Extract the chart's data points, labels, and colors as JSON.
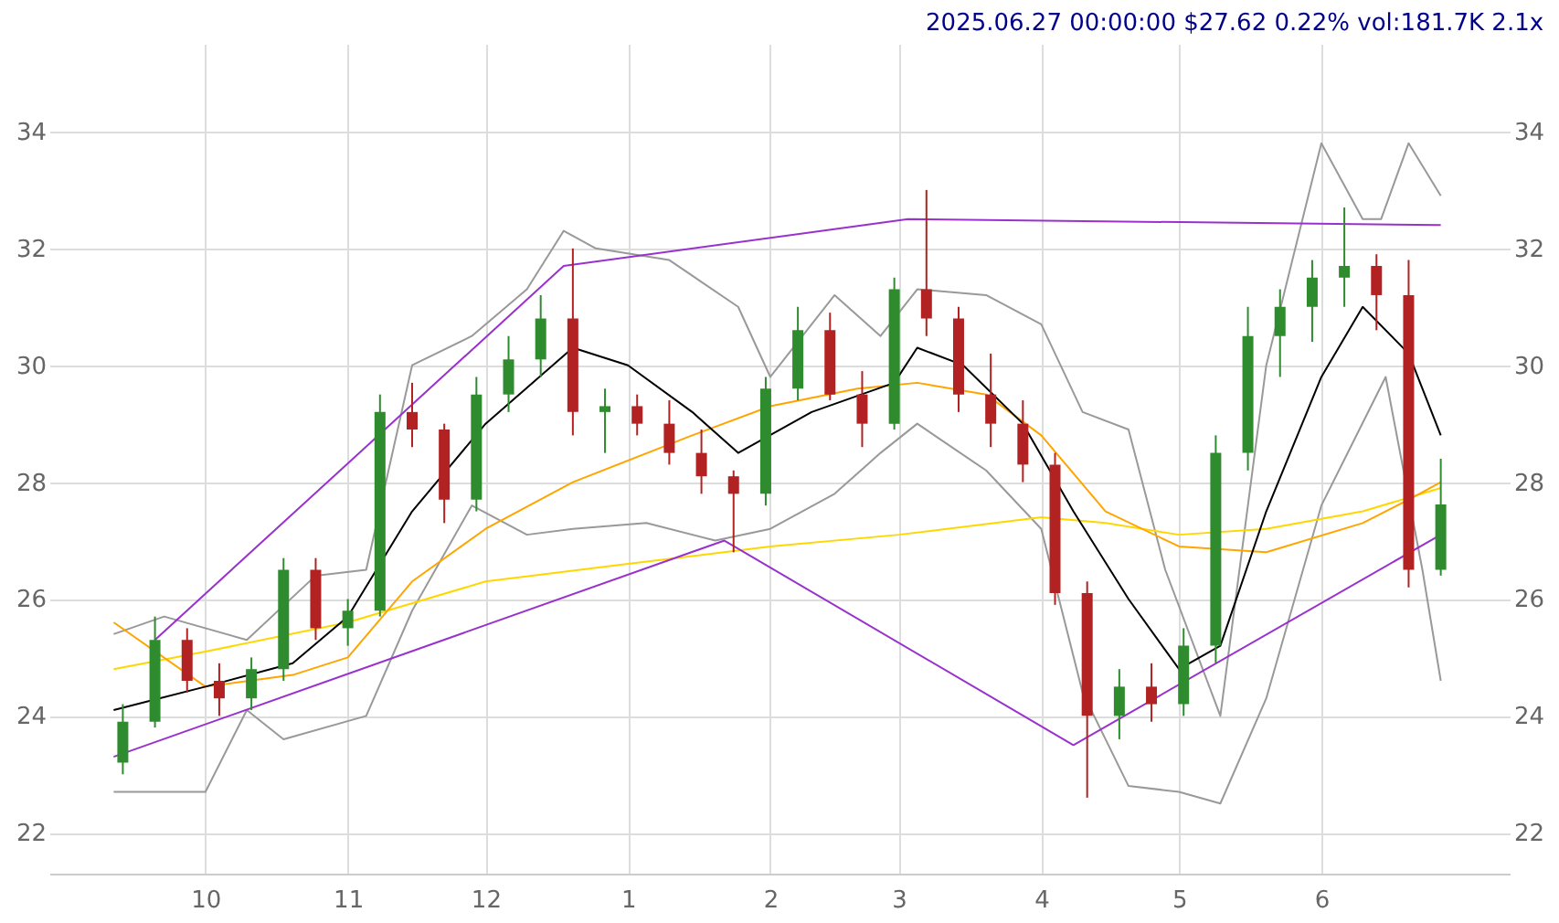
{
  "chart_data": {
    "type": "candlestick",
    "title": "2025.06.27 00:00:00 $27.62 0.22% vol:181.7K 2.1x",
    "x": [
      "2024-09-13",
      "2024-09-20",
      "2024-09-27",
      "2024-10-04",
      "2024-10-11",
      "2024-10-18",
      "2024-10-25",
      "2024-11-01",
      "2024-11-08",
      "2024-11-15",
      "2024-11-22",
      "2024-11-29",
      "2024-12-06",
      "2024-12-13",
      "2024-12-20",
      "2024-12-27",
      "2025-01-03",
      "2025-01-10",
      "2025-01-17",
      "2025-01-24",
      "2025-01-31",
      "2025-02-07",
      "2025-02-14",
      "2025-02-21",
      "2025-02-28",
      "2025-03-07",
      "2025-03-14",
      "2025-03-21",
      "2025-03-28",
      "2025-04-04",
      "2025-04-11",
      "2025-04-18",
      "2025-04-25",
      "2025-05-02",
      "2025-05-09",
      "2025-05-16",
      "2025-05-23",
      "2025-05-30",
      "2025-06-06",
      "2025-06-13",
      "2025-06-20",
      "2025-06-27"
    ],
    "ohlc": [
      [
        23.2,
        24.2,
        23.0,
        23.9
      ],
      [
        23.9,
        25.7,
        23.8,
        25.3
      ],
      [
        25.3,
        25.5,
        24.4,
        24.6
      ],
      [
        24.6,
        24.9,
        24.0,
        24.3
      ],
      [
        24.3,
        25.0,
        24.1,
        24.8
      ],
      [
        24.8,
        26.7,
        24.6,
        26.5
      ],
      [
        26.5,
        26.7,
        25.3,
        25.5
      ],
      [
        25.5,
        26.0,
        25.2,
        25.8
      ],
      [
        25.8,
        29.5,
        25.7,
        29.2
      ],
      [
        29.2,
        29.7,
        28.6,
        28.9
      ],
      [
        28.9,
        29.0,
        27.3,
        27.7
      ],
      [
        27.7,
        29.8,
        27.5,
        29.5
      ],
      [
        29.5,
        30.5,
        29.2,
        30.1
      ],
      [
        30.1,
        31.2,
        29.8,
        30.8
      ],
      [
        30.8,
        32.0,
        28.8,
        29.2
      ],
      [
        29.2,
        29.6,
        28.5,
        29.3
      ],
      [
        29.3,
        29.5,
        28.8,
        29.0
      ],
      [
        29.0,
        29.4,
        28.3,
        28.5
      ],
      [
        28.5,
        28.9,
        27.8,
        28.1
      ],
      [
        28.1,
        28.2,
        26.8,
        27.8
      ],
      [
        27.8,
        29.8,
        27.6,
        29.6
      ],
      [
        29.6,
        31.0,
        29.4,
        30.6
      ],
      [
        30.6,
        30.9,
        29.4,
        29.5
      ],
      [
        29.5,
        29.9,
        28.6,
        29.0
      ],
      [
        29.0,
        31.5,
        28.9,
        31.3
      ],
      [
        31.3,
        33.0,
        30.5,
        30.8
      ],
      [
        30.8,
        31.0,
        29.2,
        29.5
      ],
      [
        29.5,
        30.2,
        28.6,
        29.0
      ],
      [
        29.0,
        29.4,
        28.0,
        28.3
      ],
      [
        28.3,
        28.5,
        25.9,
        26.1
      ],
      [
        26.1,
        26.3,
        22.6,
        24.0
      ],
      [
        24.0,
        24.8,
        23.6,
        24.5
      ],
      [
        24.5,
        24.9,
        23.9,
        24.2
      ],
      [
        24.2,
        25.5,
        24.0,
        25.2
      ],
      [
        25.2,
        28.8,
        24.9,
        28.5
      ],
      [
        28.5,
        31.0,
        28.2,
        30.5
      ],
      [
        30.5,
        31.3,
        29.8,
        31.0
      ],
      [
        31.0,
        31.8,
        30.4,
        31.5
      ],
      [
        31.5,
        32.7,
        31.0,
        31.7
      ],
      [
        31.7,
        31.9,
        30.6,
        31.2
      ],
      [
        31.2,
        31.8,
        26.2,
        26.5
      ],
      [
        26.5,
        28.4,
        26.4,
        27.62
      ]
    ],
    "series": [
      {
        "type": "line",
        "color": "#999999",
        "x": [
          "2024-09-11",
          "2024-09-22",
          "2024-10-10",
          "2024-10-25",
          "2024-11-05",
          "2024-11-15",
          "2024-11-28",
          "2024-12-10",
          "2024-12-18",
          "2024-12-25",
          "2025-01-10",
          "2025-01-25",
          "2025-02-01",
          "2025-02-15",
          "2025-02-25",
          "2025-03-05",
          "2025-03-20",
          "2025-04-01",
          "2025-04-10",
          "2025-04-20",
          "2025-04-28",
          "2025-05-10",
          "2025-05-20",
          "2025-06-01",
          "2025-06-10",
          "2025-06-14",
          "2025-06-20",
          "2025-06-27"
        ],
        "values": [
          25.4,
          25.7,
          25.3,
          26.4,
          26.5,
          30.0,
          30.5,
          31.3,
          32.3,
          32.0,
          31.8,
          31.0,
          29.8,
          31.2,
          30.5,
          31.3,
          31.2,
          30.7,
          29.2,
          28.9,
          26.5,
          24.0,
          30.0,
          33.8,
          32.5,
          32.5,
          33.8,
          32.9
        ]
      },
      {
        "type": "line",
        "color": "#999999",
        "x": [
          "2024-09-11",
          "2024-10-01",
          "2024-10-10",
          "2024-10-18",
          "2024-11-05",
          "2024-11-15",
          "2024-11-28",
          "2024-12-10",
          "2024-12-20",
          "2025-01-05",
          "2025-01-20",
          "2025-02-01",
          "2025-02-15",
          "2025-02-25",
          "2025-03-05",
          "2025-03-20",
          "2025-04-01",
          "2025-04-10",
          "2025-04-20",
          "2025-05-01",
          "2025-05-10",
          "2025-05-20",
          "2025-06-01",
          "2025-06-15",
          "2025-06-23",
          "2025-06-27"
        ],
        "values": [
          22.7,
          22.7,
          24.1,
          23.6,
          24.0,
          25.8,
          27.6,
          27.1,
          27.2,
          27.3,
          27.0,
          27.2,
          27.8,
          28.5,
          29.0,
          28.2,
          27.2,
          24.4,
          22.8,
          22.7,
          22.5,
          24.3,
          27.6,
          29.8,
          26.5,
          24.6
        ]
      },
      {
        "type": "line",
        "color": "#ffd700",
        "x": [
          "2024-09-11",
          "2024-10-01",
          "2024-11-01",
          "2024-12-01",
          "2025-01-01",
          "2025-02-01",
          "2025-03-01",
          "2025-04-01",
          "2025-04-15",
          "2025-05-01",
          "2025-05-20",
          "2025-06-10",
          "2025-06-27"
        ],
        "values": [
          24.8,
          25.1,
          25.6,
          26.3,
          26.6,
          26.9,
          27.1,
          27.4,
          27.3,
          27.1,
          27.2,
          27.5,
          27.9
        ]
      },
      {
        "type": "line",
        "color": "#ffa500",
        "x": [
          "2024-09-11",
          "2024-10-01",
          "2024-10-20",
          "2024-11-01",
          "2024-11-15",
          "2024-12-01",
          "2024-12-20",
          "2025-01-15",
          "2025-02-01",
          "2025-02-20",
          "2025-03-05",
          "2025-03-20",
          "2025-04-01",
          "2025-04-15",
          "2025-05-01",
          "2025-05-20",
          "2025-06-10",
          "2025-06-20",
          "2025-06-27"
        ],
        "values": [
          25.6,
          24.5,
          24.7,
          25.0,
          26.3,
          27.2,
          28.0,
          28.8,
          29.3,
          29.6,
          29.7,
          29.5,
          28.8,
          27.5,
          26.9,
          26.8,
          27.3,
          27.7,
          28.0
        ]
      },
      {
        "type": "line",
        "color": "#000000",
        "x": [
          "2024-09-11",
          "2024-10-01",
          "2024-10-20",
          "2024-11-01",
          "2024-11-15",
          "2024-12-01",
          "2024-12-20",
          "2025-01-01",
          "2025-01-15",
          "2025-01-25",
          "2025-02-10",
          "2025-02-28",
          "2025-03-05",
          "2025-03-15",
          "2025-03-28",
          "2025-04-08",
          "2025-04-20",
          "2025-05-01",
          "2025-05-10",
          "2025-05-20",
          "2025-06-01",
          "2025-06-10",
          "2025-06-20",
          "2025-06-27"
        ],
        "values": [
          24.1,
          24.5,
          24.9,
          25.7,
          27.5,
          29.0,
          30.3,
          30.0,
          29.2,
          28.5,
          29.2,
          29.7,
          30.3,
          30.0,
          29.0,
          27.5,
          26.0,
          24.8,
          25.2,
          27.5,
          29.8,
          31.0,
          30.2,
          28.8
        ]
      },
      {
        "type": "line",
        "color": "#9932cc",
        "x": [
          "2024-09-11",
          "2025-01-22",
          "2025-04-08",
          "2025-06-27"
        ],
        "values": [
          23.3,
          27.0,
          23.5,
          27.1
        ]
      },
      {
        "type": "line",
        "color": "#9932cc",
        "x": [
          "2024-09-20",
          "2024-12-18",
          "2025-03-03",
          "2025-06-27"
        ],
        "values": [
          25.3,
          31.7,
          32.5,
          32.4
        ]
      }
    ],
    "xlim": [
      "2024-08-28",
      "2025-07-12"
    ],
    "xticks": [
      {
        "value": "2024-10-01",
        "label": "10"
      },
      {
        "value": "2024-11-01",
        "label": "11"
      },
      {
        "value": "2024-12-01",
        "label": "12"
      },
      {
        "value": "2025-01-01",
        "label": "1"
      },
      {
        "value": "2025-02-01",
        "label": "2"
      },
      {
        "value": "2025-03-01",
        "label": "3"
      },
      {
        "value": "2025-04-01",
        "label": "4"
      },
      {
        "value": "2025-05-01",
        "label": "5"
      },
      {
        "value": "2025-06-01",
        "label": "6"
      }
    ],
    "ylim": [
      21.3,
      35.5
    ],
    "yticks": [
      22,
      24,
      26,
      28,
      30,
      32,
      34
    ],
    "y2lim": [
      21.3,
      35.5
    ],
    "y2ticks": [
      22,
      24,
      26,
      28,
      30,
      32,
      34
    ],
    "grid": true,
    "marker": "none",
    "line_style": "solid"
  }
}
